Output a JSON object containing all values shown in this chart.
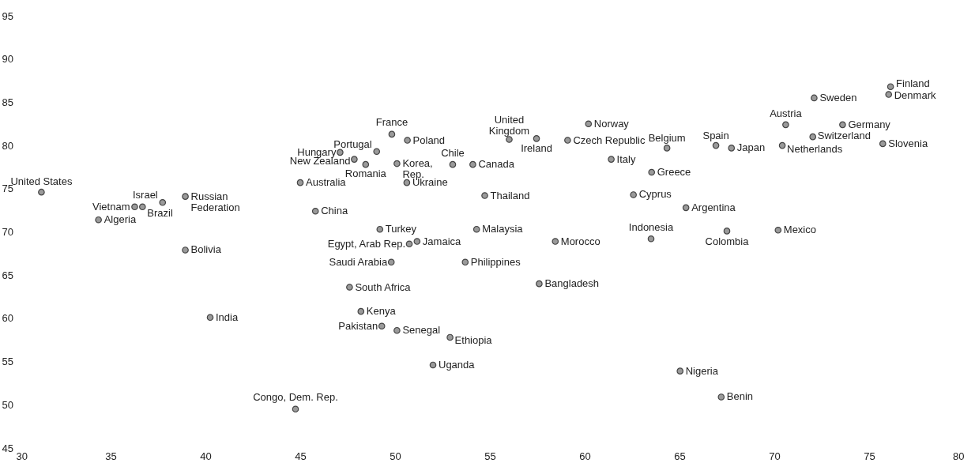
{
  "chart_data": {
    "type": "scatter",
    "color": "#9a9a9a",
    "marker": "circle",
    "grid": false,
    "xlim": [
      30,
      80
    ],
    "ylim": [
      45,
      95
    ],
    "xticks": [
      30,
      35,
      40,
      45,
      50,
      55,
      60,
      65,
      70,
      75,
      80
    ],
    "yticks": [
      45,
      50,
      55,
      60,
      65,
      70,
      75,
      80,
      85,
      90,
      95
    ],
    "x": [
      31.35,
      36.27,
      36.68,
      34.36,
      37.74,
      38.94,
      38.94,
      40.25,
      44.75,
      45.0,
      45.8,
      47.1,
      47.85,
      48.45,
      49.03,
      49.83,
      50.65,
      50.1,
      50.62,
      53.04,
      54.1,
      56.02,
      57.46,
      60.2,
      59.1,
      61.4,
      54.73,
      49.2,
      50.75,
      51.16,
      54.3,
      58.45,
      49.8,
      53.7,
      47.6,
      57.6,
      48.2,
      49.3,
      50.1,
      52.9,
      52.0,
      76.13,
      76.03,
      72.1,
      70.6,
      73.6,
      72.03,
      70.42,
      75.72,
      64.34,
      66.92,
      67.74,
      63.53,
      62.57,
      65.34,
      63.5,
      67.5,
      70.2,
      65.03,
      67.2
    ],
    "values": [
      74.6,
      72.9,
      72.9,
      71.4,
      73.4,
      74.1,
      67.9,
      60.1,
      49.5,
      75.7,
      72.4,
      79.2,
      78.4,
      77.8,
      79.3,
      81.3,
      80.6,
      77.9,
      75.7,
      77.8,
      77.8,
      80.7,
      80.8,
      82.5,
      80.6,
      78.4,
      74.2,
      70.3,
      68.6,
      68.9,
      70.3,
      68.9,
      66.5,
      66.5,
      63.6,
      64.0,
      60.8,
      59.1,
      58.6,
      57.8,
      54.6,
      86.8,
      85.9,
      85.5,
      82.4,
      82.4,
      81.0,
      80.0,
      80.2,
      79.7,
      80.0,
      79.7,
      76.9,
      74.3,
      72.8,
      69.2,
      70.1,
      70.2,
      53.9,
      50.9
    ],
    "annotations": [
      {
        "text": "United States",
        "x": 31.35,
        "y": 74.6
      },
      {
        "text": "Vietnam",
        "x": 36.27,
        "y": 72.9
      },
      {
        "text": "Brazil",
        "x": 36.68,
        "y": 72.9
      },
      {
        "text": "Algeria",
        "x": 34.36,
        "y": 71.4
      },
      {
        "text": "Israel",
        "x": 37.74,
        "y": 73.4
      },
      {
        "text": "Russian Federation",
        "x": 38.94,
        "y": 74.1
      },
      {
        "text": "Bolivia",
        "x": 38.94,
        "y": 67.9
      },
      {
        "text": "India",
        "x": 40.25,
        "y": 60.1
      },
      {
        "text": "Congo, Dem. Rep.",
        "x": 44.75,
        "y": 49.5
      },
      {
        "text": "Australia",
        "x": 45.0,
        "y": 75.7
      },
      {
        "text": "China",
        "x": 45.8,
        "y": 72.4
      },
      {
        "text": "Hungary",
        "x": 47.1,
        "y": 79.2
      },
      {
        "text": "New Zealand",
        "x": 47.85,
        "y": 78.4
      },
      {
        "text": "Romania",
        "x": 48.45,
        "y": 77.8
      },
      {
        "text": "Portugal",
        "x": 49.03,
        "y": 79.3
      },
      {
        "text": "France",
        "x": 49.83,
        "y": 81.3
      },
      {
        "text": "Poland",
        "x": 50.65,
        "y": 80.6
      },
      {
        "text": "Korea, Rep.",
        "x": 50.1,
        "y": 77.9
      },
      {
        "text": "Ukraine",
        "x": 50.62,
        "y": 75.7
      },
      {
        "text": "Chile",
        "x": 53.04,
        "y": 77.8
      },
      {
        "text": "Canada",
        "x": 54.1,
        "y": 77.8
      },
      {
        "text": "United Kingdom",
        "x": 56.02,
        "y": 80.7
      },
      {
        "text": "Ireland",
        "x": 57.46,
        "y": 80.8
      },
      {
        "text": "Norway",
        "x": 60.2,
        "y": 82.5
      },
      {
        "text": "Czech Republic",
        "x": 59.1,
        "y": 80.6
      },
      {
        "text": "Italy",
        "x": 61.4,
        "y": 78.4
      },
      {
        "text": "Thailand",
        "x": 54.73,
        "y": 74.2
      },
      {
        "text": "Turkey",
        "x": 49.2,
        "y": 70.3
      },
      {
        "text": "Egypt, Arab Rep.",
        "x": 50.75,
        "y": 68.6
      },
      {
        "text": "Jamaica",
        "x": 51.16,
        "y": 68.9
      },
      {
        "text": "Malaysia",
        "x": 54.3,
        "y": 70.3
      },
      {
        "text": "Morocco",
        "x": 58.45,
        "y": 68.9
      },
      {
        "text": "Saudi Arabia",
        "x": 49.8,
        "y": 66.5
      },
      {
        "text": "Philippines",
        "x": 53.7,
        "y": 66.5
      },
      {
        "text": "South Africa",
        "x": 47.6,
        "y": 63.6
      },
      {
        "text": "Bangladesh",
        "x": 57.6,
        "y": 64.0
      },
      {
        "text": "Kenya",
        "x": 48.2,
        "y": 60.8
      },
      {
        "text": "Pakistan",
        "x": 49.3,
        "y": 59.1
      },
      {
        "text": "Senegal",
        "x": 50.1,
        "y": 58.6
      },
      {
        "text": "Ethiopia",
        "x": 52.9,
        "y": 57.8
      },
      {
        "text": "Uganda",
        "x": 52.0,
        "y": 54.6
      },
      {
        "text": "Finland",
        "x": 76.13,
        "y": 86.8
      },
      {
        "text": "Denmark",
        "x": 76.03,
        "y": 85.9
      },
      {
        "text": "Sweden",
        "x": 72.1,
        "y": 85.5
      },
      {
        "text": "Austria",
        "x": 70.6,
        "y": 82.4
      },
      {
        "text": "Germany",
        "x": 73.6,
        "y": 82.4
      },
      {
        "text": "Switzerland",
        "x": 72.03,
        "y": 81.0
      },
      {
        "text": "Netherlands",
        "x": 70.42,
        "y": 80.0
      },
      {
        "text": "Slovenia",
        "x": 75.72,
        "y": 80.2
      },
      {
        "text": "Belgium",
        "x": 64.34,
        "y": 79.7
      },
      {
        "text": "Spain",
        "x": 66.92,
        "y": 80.0
      },
      {
        "text": "Japan",
        "x": 67.74,
        "y": 79.7
      },
      {
        "text": "Greece",
        "x": 63.53,
        "y": 76.9
      },
      {
        "text": "Cyprus",
        "x": 62.57,
        "y": 74.3
      },
      {
        "text": "Argentina",
        "x": 65.34,
        "y": 72.8
      },
      {
        "text": "Indonesia",
        "x": 63.5,
        "y": 69.2
      },
      {
        "text": "Colombia",
        "x": 67.5,
        "y": 70.1
      },
      {
        "text": "Mexico",
        "x": 70.2,
        "y": 70.2
      },
      {
        "text": "Nigeria",
        "x": 65.03,
        "y": 53.9
      },
      {
        "text": "Benin",
        "x": 67.2,
        "y": 50.9
      }
    ]
  }
}
